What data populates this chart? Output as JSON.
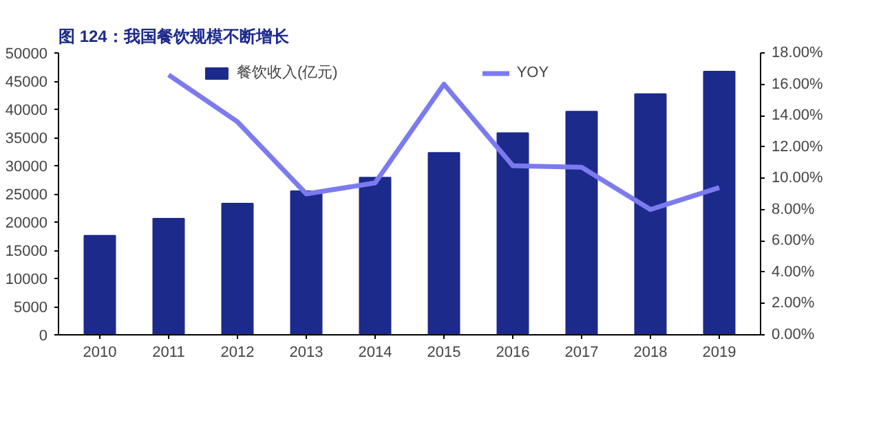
{
  "chart_data": {
    "type": "bar",
    "title": "图 124：我国餐饮规模不断增长",
    "categories": [
      "2010",
      "2011",
      "2012",
      "2013",
      "2014",
      "2015",
      "2016",
      "2017",
      "2018",
      "2019"
    ],
    "series": [
      {
        "name": "餐饮收入(亿元)",
        "type": "bar",
        "color": "#1c2a8c",
        "values": [
          17600,
          20600,
          23300,
          25500,
          27900,
          32300,
          35800,
          39600,
          42700,
          46700
        ]
      },
      {
        "name": "YOY",
        "type": "line",
        "axis": "y2",
        "color": "#7b7bef",
        "values": [
          null,
          16.6,
          13.6,
          9.0,
          9.7,
          16.0,
          10.8,
          10.7,
          8.0,
          9.4
        ]
      }
    ],
    "ylim": [
      0,
      50000
    ],
    "yticks": [
      0,
      5000,
      10000,
      15000,
      20000,
      25000,
      30000,
      35000,
      40000,
      45000,
      50000
    ],
    "y2lim": [
      0,
      18
    ],
    "y2ticks": [
      {
        "value": 0,
        "label": "0.00%"
      },
      {
        "value": 2,
        "label": "2.00%"
      },
      {
        "value": 4,
        "label": "4.00%"
      },
      {
        "value": 6,
        "label": "6.00%"
      },
      {
        "value": 8,
        "label": "8.00%"
      },
      {
        "value": 10,
        "label": "10.00%"
      },
      {
        "value": 12,
        "label": "12.00%"
      },
      {
        "value": 14,
        "label": "14.00%"
      },
      {
        "value": 16,
        "label": "16.00%"
      },
      {
        "value": 18,
        "label": "18.00%"
      }
    ],
    "grid": false,
    "legend": "top",
    "marker": "none",
    "line_style": "solid"
  }
}
